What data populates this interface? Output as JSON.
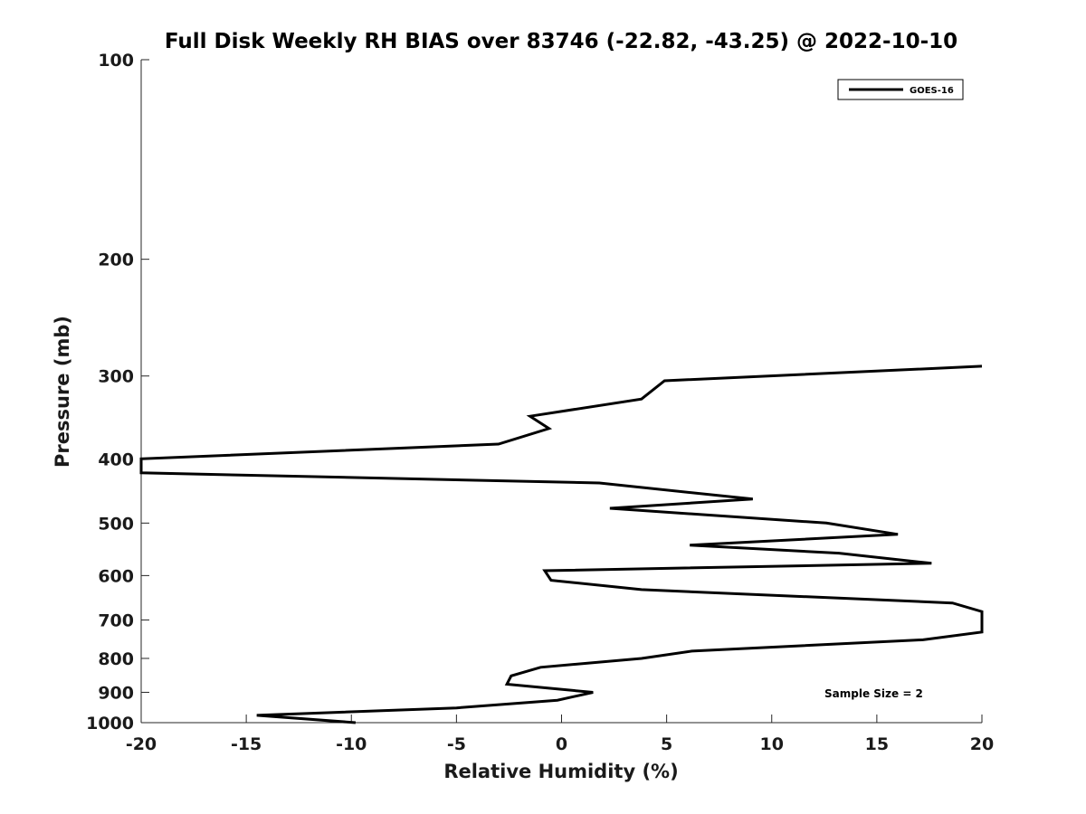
{
  "chart_data": {
    "type": "line",
    "title": "Full Disk Weekly RH BIAS over 83746 (-22.82, -43.25) @ 2022-10-10",
    "xlabel": "Relative Humidity (%)",
    "ylabel": "Pressure (mb)",
    "xlim": [
      -20,
      20
    ],
    "ylim": [
      1000,
      100
    ],
    "yscale": "log",
    "grid": false,
    "legend_position": "top-right",
    "x_ticks": [
      -20,
      -15,
      -10,
      -5,
      0,
      5,
      10,
      15,
      20
    ],
    "x_tick_labels": [
      "-20",
      "-15",
      "-10",
      "-5",
      "0",
      "5",
      "10",
      "15",
      "20"
    ],
    "y_ticks": [
      100,
      200,
      300,
      400,
      500,
      600,
      700,
      800,
      900,
      1000
    ],
    "y_tick_labels": [
      "100",
      "200",
      "300",
      "400",
      "500",
      "600",
      "700",
      "800",
      "900",
      "1000"
    ],
    "series": [
      {
        "name": "GOES-16",
        "color": "#000000",
        "points": [
          [
            -9.8,
            1000
          ],
          [
            -14.5,
            975
          ],
          [
            -5.0,
            950
          ],
          [
            -0.2,
            925
          ],
          [
            1.5,
            900
          ],
          [
            -2.6,
            875
          ],
          [
            -2.4,
            850
          ],
          [
            -1.0,
            825
          ],
          [
            3.8,
            800
          ],
          [
            6.2,
            780
          ],
          [
            17.2,
            750
          ],
          [
            20.0,
            730
          ],
          [
            20.0,
            680
          ],
          [
            18.6,
            660
          ],
          [
            3.8,
            630
          ],
          [
            -0.5,
            610
          ],
          [
            -0.8,
            590
          ],
          [
            17.6,
            575
          ],
          [
            13.2,
            555
          ],
          [
            6.1,
            540
          ],
          [
            16.0,
            520
          ],
          [
            12.6,
            500
          ],
          [
            2.3,
            475
          ],
          [
            9.1,
            460
          ],
          [
            1.8,
            435
          ],
          [
            -20.0,
            420
          ],
          [
            -20.0,
            400
          ],
          [
            -3.0,
            380
          ],
          [
            -0.6,
            360
          ],
          [
            -1.5,
            345
          ],
          [
            3.8,
            325
          ],
          [
            4.9,
            305
          ],
          [
            20.0,
            290
          ]
        ]
      }
    ],
    "annotations": [
      {
        "text": "Sample Size = 2"
      }
    ]
  }
}
